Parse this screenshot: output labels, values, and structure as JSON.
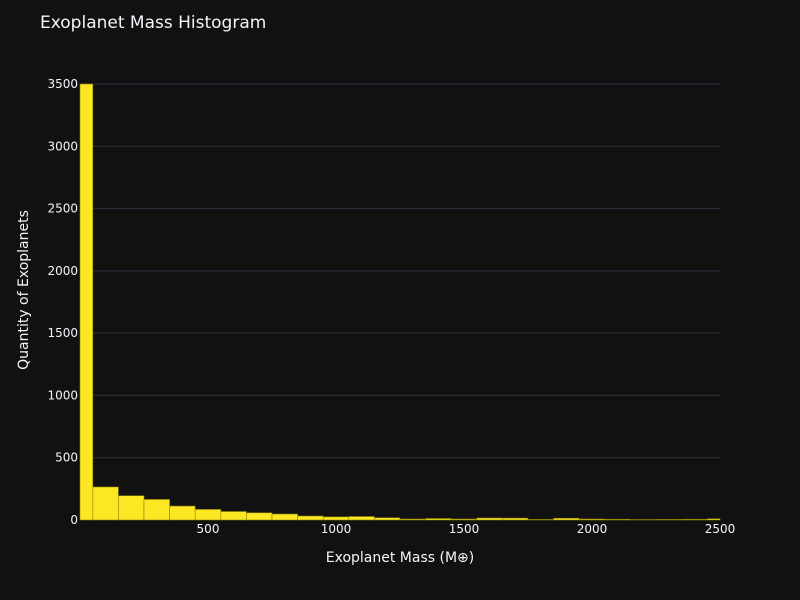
{
  "chart_data": {
    "type": "bar",
    "title": "Exoplanet Mass Histogram",
    "xlabel": "Exoplanet Mass (M⊕)",
    "ylabel": "Quantity of Exoplanets",
    "x_range": [
      0,
      2500
    ],
    "y_range": [
      0,
      3500
    ],
    "x_ticks": [
      500,
      1000,
      1500,
      2000,
      2500
    ],
    "y_ticks": [
      0,
      500,
      1000,
      1500,
      2000,
      2500,
      3000,
      3500
    ],
    "grid": true,
    "legend": false,
    "colors": {
      "background": "#111111",
      "bar_fill": "#fde725",
      "bar_edge": "#8a8000",
      "grid": "#283442",
      "text": "#f2f5fa"
    },
    "bins": [
      {
        "start": 0,
        "end": 50,
        "count": 3500
      },
      {
        "start": 50,
        "end": 150,
        "count": 265
      },
      {
        "start": 150,
        "end": 250,
        "count": 195
      },
      {
        "start": 250,
        "end": 350,
        "count": 165
      },
      {
        "start": 350,
        "end": 450,
        "count": 112
      },
      {
        "start": 450,
        "end": 550,
        "count": 85
      },
      {
        "start": 550,
        "end": 650,
        "count": 68
      },
      {
        "start": 650,
        "end": 750,
        "count": 58
      },
      {
        "start": 750,
        "end": 850,
        "count": 48
      },
      {
        "start": 850,
        "end": 950,
        "count": 32
      },
      {
        "start": 950,
        "end": 1050,
        "count": 25
      },
      {
        "start": 1050,
        "end": 1150,
        "count": 28
      },
      {
        "start": 1150,
        "end": 1250,
        "count": 18
      },
      {
        "start": 1250,
        "end": 1350,
        "count": 8
      },
      {
        "start": 1350,
        "end": 1450,
        "count": 12
      },
      {
        "start": 1450,
        "end": 1550,
        "count": 8
      },
      {
        "start": 1550,
        "end": 1650,
        "count": 16
      },
      {
        "start": 1650,
        "end": 1750,
        "count": 15
      },
      {
        "start": 1750,
        "end": 1850,
        "count": 5
      },
      {
        "start": 1850,
        "end": 1950,
        "count": 14
      },
      {
        "start": 1950,
        "end": 2050,
        "count": 8
      },
      {
        "start": 2050,
        "end": 2150,
        "count": 6
      },
      {
        "start": 2150,
        "end": 2250,
        "count": 4
      },
      {
        "start": 2250,
        "end": 2350,
        "count": 5
      },
      {
        "start": 2350,
        "end": 2450,
        "count": 6
      },
      {
        "start": 2450,
        "end": 2500,
        "count": 10
      }
    ]
  }
}
